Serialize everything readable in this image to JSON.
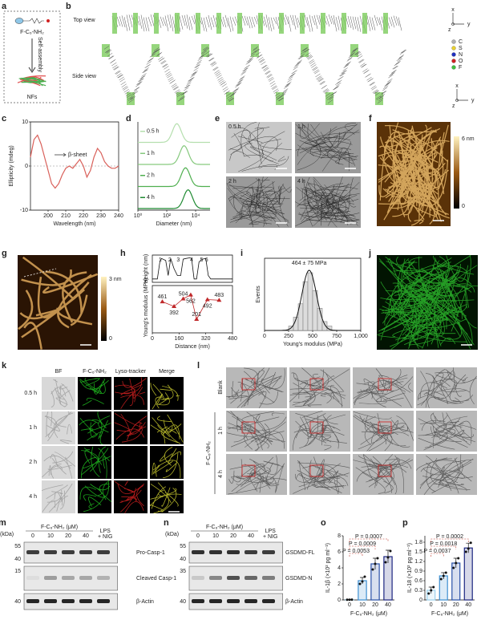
{
  "panels": {
    "a": {
      "letter": "a",
      "molecule": "F-C₆-NH₂",
      "arrow_label": "Self-assembly",
      "product": "NFs"
    },
    "b": {
      "letter": "b",
      "top_view": "Top view",
      "side_view": "Side view",
      "axes_top": [
        "x",
        "y",
        "z"
      ],
      "axes_side": [
        "x",
        "y",
        "z"
      ],
      "atoms": [
        {
          "name": "C",
          "color": "#b0b0b0"
        },
        {
          "name": "S",
          "color": "#e8d030"
        },
        {
          "name": "N",
          "color": "#2030c0"
        },
        {
          "name": "O",
          "color": "#d02020"
        },
        {
          "name": "F",
          "color": "#40c040"
        }
      ]
    },
    "e": {
      "letter": "e",
      "labels": [
        "0.5 h",
        "1 h",
        "2 h",
        "4 h"
      ]
    },
    "f": {
      "letter": "f",
      "scale_max": "6 nm",
      "scale_min": "0"
    },
    "g": {
      "letter": "g",
      "scale_max": "3 nm",
      "scale_min": "0"
    },
    "j": {
      "letter": "j"
    },
    "k": {
      "letter": "k",
      "columns": [
        "BF",
        "F-C₆-NH₂",
        "Lyso-tracker",
        "Merge"
      ],
      "rows": [
        "0.5 h",
        "1 h",
        "2 h",
        "4 h"
      ]
    },
    "l": {
      "letter": "l",
      "rows": [
        "Blank",
        "1 h",
        "4 h"
      ],
      "group": "F-C₆-NH₂"
    },
    "m": {
      "letter": "m",
      "unit": "(kDa)",
      "header": "F-C₆-NH₂ (μM)",
      "lanes": [
        "0",
        "10",
        "20",
        "40"
      ],
      "extra_lane": [
        "LPS",
        "+ NIG"
      ],
      "markers": [
        "55",
        "40",
        "15",
        "40"
      ],
      "bands": [
        "Pro-Casp-1",
        "Cleaved Casp-1",
        "β-Actin"
      ]
    },
    "n": {
      "letter": "n",
      "unit": "(kDa)",
      "header": "F-C₆-NH₂ (μM)",
      "lanes": [
        "0",
        "10",
        "20",
        "40"
      ],
      "extra_lane": [
        "LPS",
        "+ NIG"
      ],
      "markers": [
        "55",
        "40",
        "35",
        "40"
      ],
      "bands": [
        "GSDMD-FL",
        "GSDMD-N",
        "β-Actin"
      ]
    }
  },
  "chart_data": [
    {
      "type": "line",
      "letter": "c",
      "xlabel": "Wavelength (nm)",
      "ylabel": "Ellipticity (mdeg)",
      "annotation": "β-sheet",
      "color": "#d9605a",
      "x": [
        190,
        192,
        194,
        196,
        198,
        200,
        202,
        204,
        206,
        208,
        210,
        212,
        214,
        216,
        218,
        220,
        222,
        224,
        226,
        228,
        230,
        232,
        234,
        236,
        238,
        240
      ],
      "values": [
        2,
        6,
        7,
        5,
        2,
        -1,
        -4,
        -5,
        -4,
        -2,
        -0.5,
        0,
        -0.5,
        0.5,
        1.5,
        0,
        -2.5,
        -1,
        2,
        4,
        3,
        1,
        0,
        -0.5,
        -0.5,
        0
      ],
      "xlim": [
        190,
        240
      ],
      "xticks": [
        200,
        210,
        220,
        230,
        240
      ],
      "ylim": [
        -10,
        10
      ],
      "yticks": [
        -10,
        0,
        10
      ]
    },
    {
      "type": "distribution",
      "letter": "d",
      "xlabel": "Diameter (nm)",
      "log_x": true,
      "xlim": [
        1,
        100000
      ],
      "xticks": [
        {
          "value": 1,
          "label": "10⁰"
        },
        {
          "value": 100,
          "label": "10²"
        },
        {
          "value": 10000,
          "label": "10⁴"
        }
      ],
      "series": [
        {
          "name": "0.5 h",
          "peak": 500,
          "color": "#b5dfae"
        },
        {
          "name": "1 h",
          "peak": 1600,
          "color": "#86c97e"
        },
        {
          "name": "2 h",
          "peak": 2000,
          "color": "#4faf4f"
        },
        {
          "name": "4 h",
          "peak": 3000,
          "color": "#1f8a32"
        }
      ]
    },
    {
      "type": "profile",
      "letter": "h",
      "xlabel": "Distance (nm)",
      "xlim": [
        0,
        480
      ],
      "xticks": [
        0,
        160,
        320,
        480
      ],
      "height": {
        "ylabel": "Height (nm)",
        "ylim": [
          0,
          4
        ],
        "x": [
          0,
          30,
          45,
          55,
          80,
          95,
          110,
          130,
          150,
          170,
          185,
          200,
          225,
          235,
          250,
          265,
          280,
          300,
          320,
          335,
          350,
          370,
          400,
          420,
          450,
          480
        ],
        "values": [
          0.5,
          0.5,
          3,
          3.5,
          3.2,
          1,
          3.5,
          2,
          1,
          1,
          3.4,
          3.5,
          3.6,
          3.5,
          0.5,
          0.5,
          3,
          3.4,
          3.5,
          1,
          0.5,
          0.5,
          0.5,
          0.5,
          0.5,
          0.5
        ],
        "peak_labels": [
          "1",
          "2",
          "3",
          "4",
          "5",
          "6"
        ]
      },
      "modulus": {
        "ylabel": "Young's modulus (MPa)",
        "ylim": [
          0,
          700
        ],
        "x": [
          60,
          130,
          185,
          230,
          265,
          330,
          400
        ],
        "values": [
          461,
          392,
          504,
          562,
          201,
          492,
          483
        ],
        "color": "#c0282a"
      }
    },
    {
      "type": "histogram",
      "letter": "i",
      "xlabel": "Young's modulus (MPa)",
      "ylabel": "Events",
      "annotation": "464 ± 75 MPa",
      "bins": [
        250,
        300,
        350,
        400,
        450,
        500,
        550,
        600,
        650,
        700
      ],
      "counts": [
        1,
        3,
        6,
        11,
        13,
        9,
        5,
        2,
        1
      ],
      "fit": {
        "mean": 464,
        "sd": 75
      },
      "xlim": [
        0,
        1000
      ],
      "xticks": [
        0,
        250,
        500,
        750,
        {
          "value": 1000,
          "label": "1,000"
        }
      ]
    },
    {
      "type": "bar",
      "letter": "o",
      "xlabel": "F-C₆-NH₂ (μM)",
      "ylabel": "IL-1β (×10² pg ml⁻¹)",
      "categories": [
        "0",
        "10",
        "20",
        "40"
      ],
      "values": [
        0.03,
        2.4,
        4.5,
        5.4
      ],
      "errors": [
        0.05,
        0.4,
        0.7,
        0.8
      ],
      "points": [
        [
          0.02,
          0.03,
          0.04
        ],
        [
          2.0,
          2.3,
          2.9
        ],
        [
          3.8,
          4.5,
          5.2
        ],
        [
          4.7,
          5.3,
          6.1
        ]
      ],
      "colors": [
        "#9ad0ec",
        "#3d8fd1",
        "#2850a8",
        "#1c2680"
      ],
      "ylim": [
        0,
        8
      ],
      "yticks": [
        0,
        2,
        4,
        6,
        8
      ],
      "annotations": [
        "P = 0.0053",
        "P = 0.0009",
        "P = 0.0007"
      ]
    },
    {
      "type": "bar",
      "letter": "p",
      "xlabel": "F-C₆-NH₂ (μM)",
      "ylabel": "IL-18 (×10² pg ml⁻¹)",
      "categories": [
        "0",
        "10",
        "20",
        "40"
      ],
      "values": [
        0.3,
        0.75,
        1.15,
        1.62
      ],
      "errors": [
        0.1,
        0.1,
        0.15,
        0.15
      ],
      "points": [
        [
          0.2,
          0.3,
          0.4
        ],
        [
          0.65,
          0.75,
          0.85
        ],
        [
          1.0,
          1.15,
          1.3
        ],
        [
          1.5,
          1.6,
          1.78
        ]
      ],
      "colors": [
        "#9ad0ec",
        "#3d8fd1",
        "#2850a8",
        "#1c2680"
      ],
      "ylim": [
        0,
        2.0
      ],
      "yticks": [
        0,
        0.3,
        0.6,
        0.9,
        1.2,
        1.5,
        1.8
      ],
      "annotations": [
        "P = 0.0037",
        "P = 0.0018",
        "P = 0.0002"
      ]
    }
  ]
}
